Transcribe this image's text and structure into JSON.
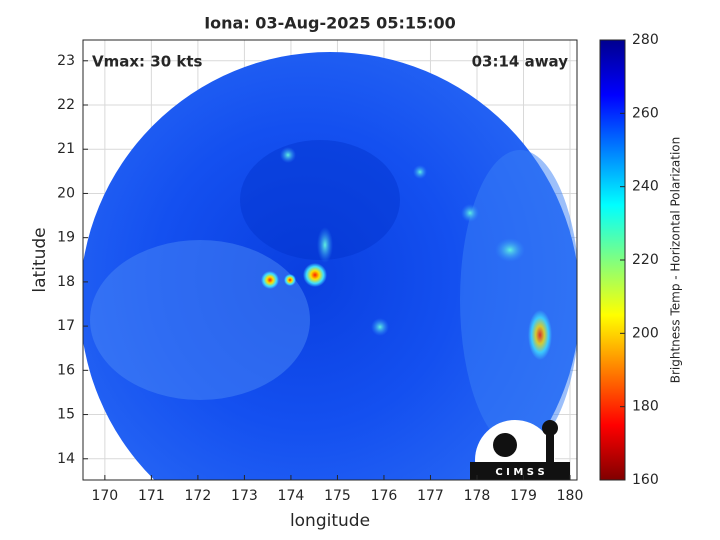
{
  "title": "Iona: 03-Aug-2025 05:15:00",
  "annotations": {
    "vmax": "Vmax: 30 kts",
    "away": "03:14 away"
  },
  "x_axis": {
    "label": "longitude",
    "lim": [
      169.53,
      180.15
    ],
    "ticks": [
      170,
      171,
      172,
      173,
      174,
      175,
      176,
      177,
      178,
      179,
      180
    ]
  },
  "y_axis": {
    "label": "latitude",
    "lim": [
      13.52,
      23.47
    ],
    "ticks": [
      14,
      15,
      16,
      17,
      18,
      19,
      20,
      21,
      22,
      23
    ]
  },
  "colorbar": {
    "label": "Brightness Temp - Horizontal Polarization",
    "lim": [
      160,
      280
    ],
    "ticks": [
      160,
      180,
      200,
      220,
      240,
      260,
      280
    ]
  },
  "logo": "C I M S S"
}
